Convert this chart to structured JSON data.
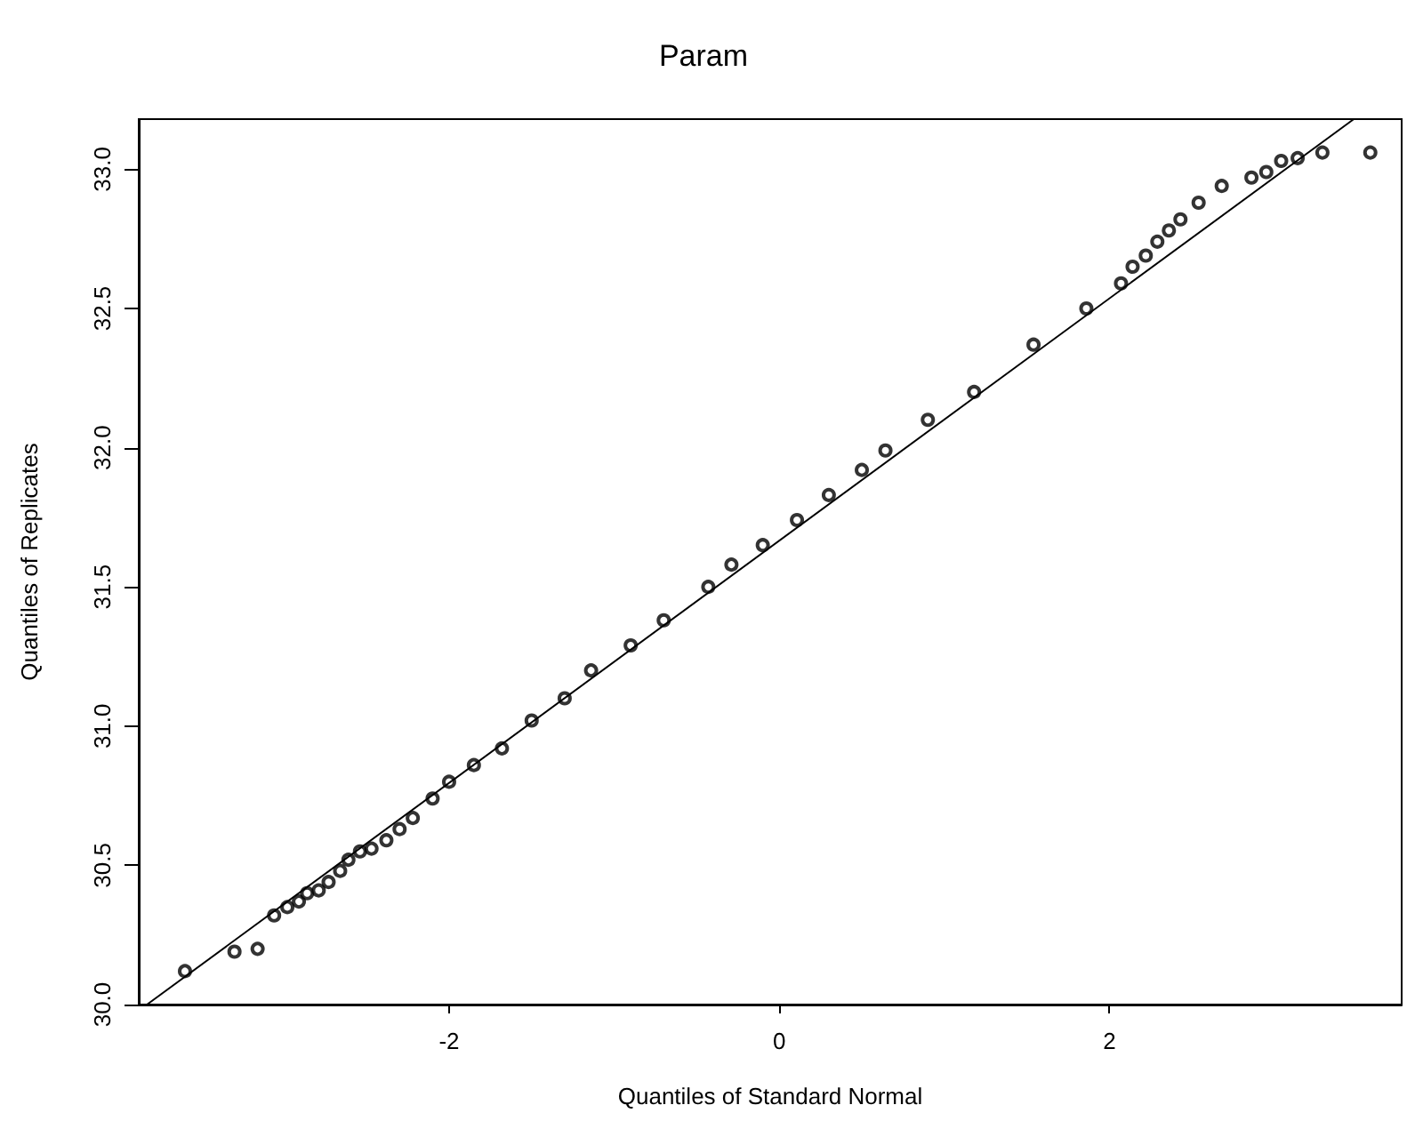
{
  "chart_data": {
    "type": "scatter",
    "title": "Param",
    "xlabel": "Quantiles of Standard Normal",
    "ylabel": "Quantiles of Replicates",
    "grid": false,
    "xlim": [
      -3.88,
      3.77
    ],
    "xticks": [
      -2,
      0,
      2
    ],
    "ylim": [
      30.0,
      33.18
    ],
    "yticks": [
      {
        "value": 30,
        "label": "30.0"
      },
      {
        "value": 30.5,
        "label": "30.5"
      },
      {
        "value": 31,
        "label": "31.0"
      },
      {
        "value": 31.5,
        "label": "31.5"
      },
      {
        "value": 32,
        "label": "32.0"
      },
      {
        "value": 32.5,
        "label": "32.5"
      },
      {
        "value": 33,
        "label": "33.0"
      }
    ],
    "series": [
      {
        "type": "scatter",
        "marker": "circle",
        "color": "#000000",
        "x": [
          -3.6,
          -3.3,
          -3.16,
          -3.06,
          -2.98,
          -2.91,
          -2.86,
          -2.79,
          -2.73,
          -2.66,
          -2.61,
          -2.54,
          -2.47,
          -2.38,
          -2.3,
          -2.22,
          -2.1,
          -2.0,
          -1.85,
          -1.68,
          -1.5,
          -1.3,
          -1.14,
          -0.9,
          -0.7,
          -0.43,
          -0.29,
          -0.1,
          0.107,
          0.3,
          0.5,
          0.643,
          0.9,
          1.18,
          1.54,
          1.86,
          2.07,
          2.14,
          2.22,
          2.29,
          2.36,
          2.43,
          2.54,
          2.68,
          2.86,
          2.95,
          3.04,
          3.14,
          3.29,
          3.58
        ],
        "values": [
          30.12,
          30.19,
          30.2,
          30.32,
          30.35,
          30.37,
          30.4,
          30.41,
          30.44,
          30.48,
          30.52,
          30.55,
          30.56,
          30.59,
          30.63,
          30.67,
          30.74,
          30.8,
          30.86,
          30.92,
          31.02,
          31.1,
          31.2,
          31.29,
          31.38,
          31.5,
          31.58,
          31.65,
          31.74,
          31.83,
          31.92,
          31.99,
          32.1,
          32.2,
          32.37,
          32.5,
          32.59,
          32.65,
          32.69,
          32.74,
          32.78,
          32.82,
          32.88,
          32.94,
          32.97,
          32.99,
          33.03,
          33.04,
          33.06,
          33.06
        ]
      },
      {
        "type": "line",
        "marker": "none",
        "color": "#000000",
        "x": [
          -3.83,
          3.48
        ],
        "values": [
          30.0,
          33.18
        ]
      }
    ]
  }
}
